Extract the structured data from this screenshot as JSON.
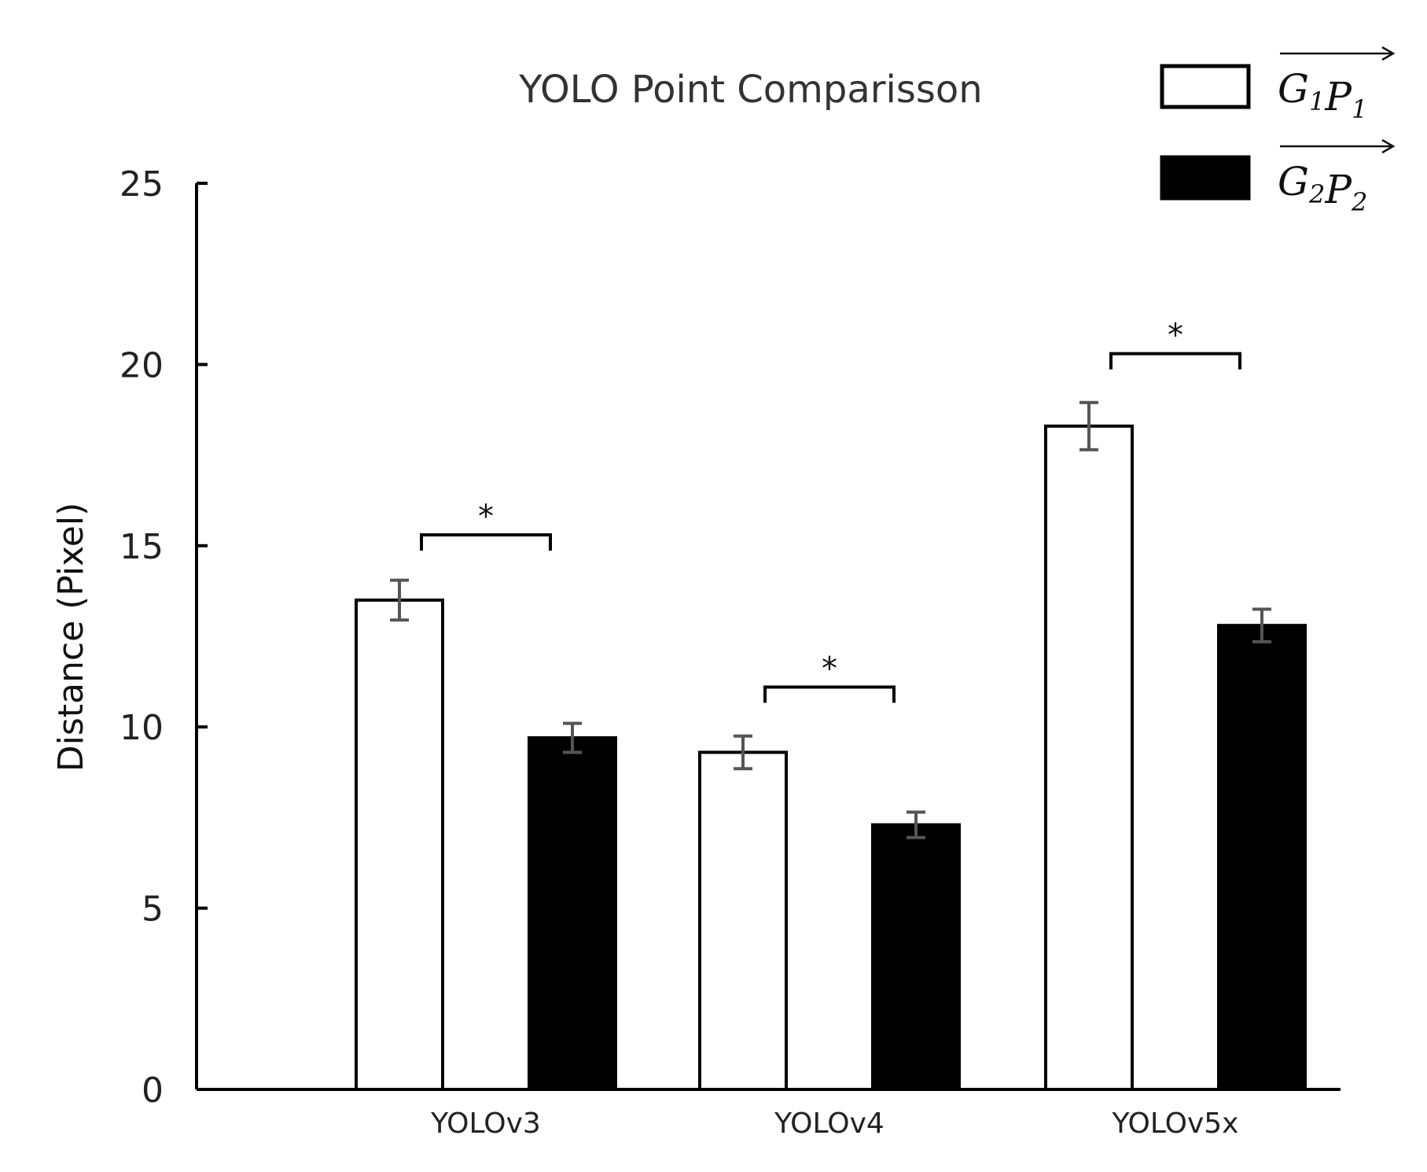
{
  "chart_data": {
    "type": "bar",
    "title": "YOLO Point Comparisson",
    "xlabel": "",
    "ylabel": "Distance (Pixel)",
    "ylim": [
      0,
      25
    ],
    "yticks": [
      0,
      5,
      10,
      15,
      20,
      25
    ],
    "categories": [
      "YOLOv3",
      "YOLOv4",
      "YOLOv5x"
    ],
    "series": [
      {
        "name": "G1P1",
        "legend_main": [
          "G",
          "P"
        ],
        "legend_subs": [
          "1",
          "1"
        ],
        "fill": "#ffffff",
        "stroke": "#000000",
        "values": [
          13.5,
          9.3,
          18.3
        ],
        "errors": [
          0.55,
          0.45,
          0.65
        ]
      },
      {
        "name": "G2P2",
        "legend_main": [
          "G",
          "P"
        ],
        "legend_subs": [
          "2",
          "2"
        ],
        "fill": "#000000",
        "stroke": "#000000",
        "values": [
          9.7,
          7.3,
          12.8
        ],
        "errors": [
          0.4,
          0.35,
          0.45
        ]
      }
    ],
    "significance": [
      {
        "category": "YOLOv3",
        "label": "*",
        "level": 15.3
      },
      {
        "category": "YOLOv4",
        "label": "*",
        "level": 11.1
      },
      {
        "category": "YOLOv5x",
        "label": "*",
        "level": 20.3
      }
    ],
    "legend_position": "top-right",
    "grid": false
  }
}
